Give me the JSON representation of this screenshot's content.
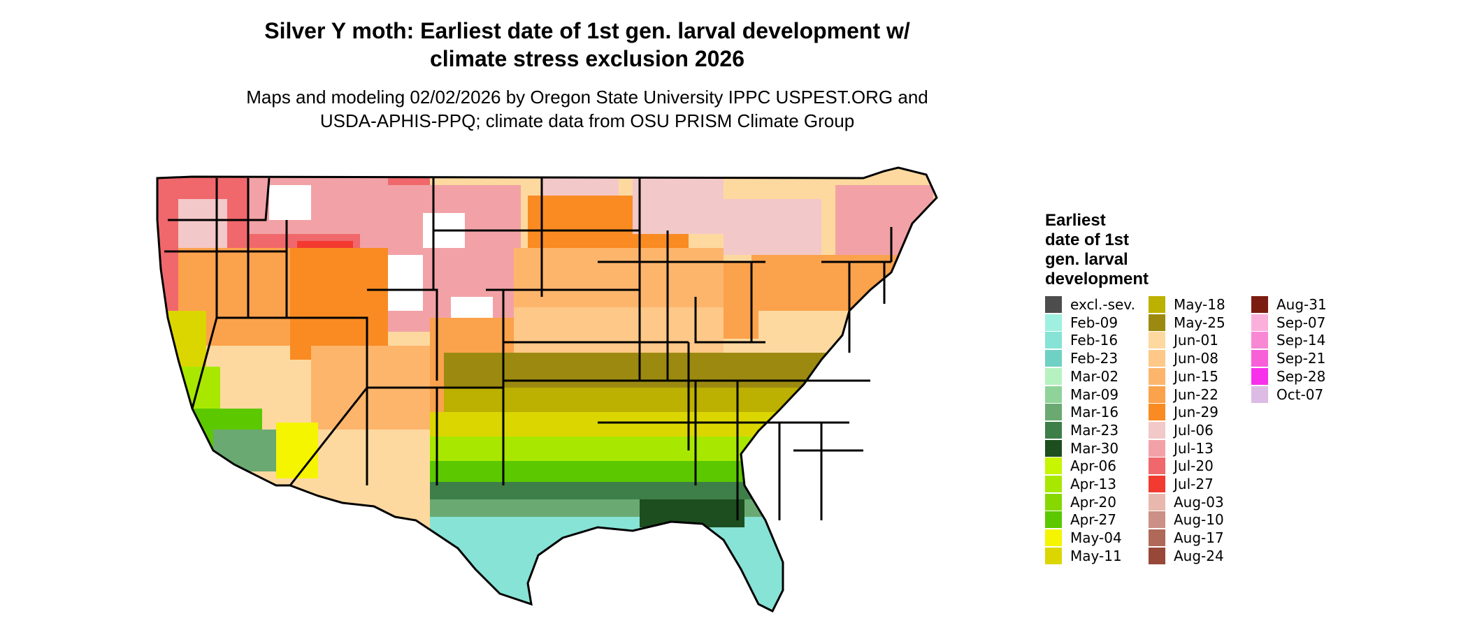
{
  "title_line1": "Silver Y moth: Earliest date of 1st gen. larval development w/",
  "title_line2": "climate stress exclusion 2026",
  "subtitle_line1": "Maps and modeling 02/02/2026 by Oregon State University IPPC USPEST.ORG and",
  "subtitle_line2": "USDA-APHIS-PPQ; climate data from OSU PRISM Climate Group",
  "legend": {
    "title_lines": [
      "Earliest",
      "date of 1st",
      "gen. larval",
      "development"
    ],
    "items": [
      {
        "label": "excl.-sev.",
        "color": "#4d4d4d"
      },
      {
        "label": "Feb-09",
        "color": "#9ff0e0"
      },
      {
        "label": "Feb-16",
        "color": "#86e3d5"
      },
      {
        "label": "Feb-23",
        "color": "#6fd1c4"
      },
      {
        "label": "Mar-02",
        "color": "#b6f2c0"
      },
      {
        "label": "Mar-09",
        "color": "#8fd39a"
      },
      {
        "label": "Mar-16",
        "color": "#6aaa72"
      },
      {
        "label": "Mar-23",
        "color": "#3e7e48"
      },
      {
        "label": "Mar-30",
        "color": "#1d4e1f"
      },
      {
        "label": "Apr-06",
        "color": "#c8f500"
      },
      {
        "label": "Apr-13",
        "color": "#a8e800"
      },
      {
        "label": "Apr-20",
        "color": "#86d800"
      },
      {
        "label": "Apr-27",
        "color": "#5cc800"
      },
      {
        "label": "May-04",
        "color": "#f5f500"
      },
      {
        "label": "May-11",
        "color": "#dcd600"
      },
      {
        "label": "May-18",
        "color": "#bcb000"
      },
      {
        "label": "May-25",
        "color": "#9c8a10"
      },
      {
        "label": "Jun-01",
        "color": "#fdd9a0"
      },
      {
        "label": "Jun-08",
        "color": "#fdc888"
      },
      {
        "label": "Jun-15",
        "color": "#fdb56c"
      },
      {
        "label": "Jun-22",
        "color": "#fba24c"
      },
      {
        "label": "Jun-29",
        "color": "#f98b22"
      },
      {
        "label": "Jul-06",
        "color": "#f3c8c8"
      },
      {
        "label": "Jul-13",
        "color": "#f2a2a6"
      },
      {
        "label": "Jul-20",
        "color": "#f0686c"
      },
      {
        "label": "Jul-27",
        "color": "#f23a30"
      },
      {
        "label": "Aug-03",
        "color": "#e8b8ae"
      },
      {
        "label": "Aug-10",
        "color": "#cc9086"
      },
      {
        "label": "Aug-17",
        "color": "#b06858"
      },
      {
        "label": "Aug-24",
        "color": "#984838"
      },
      {
        "label": "Aug-31",
        "color": "#7c1c10"
      },
      {
        "label": "Sep-07",
        "color": "#fbb0dc"
      },
      {
        "label": "Sep-14",
        "color": "#f888d4"
      },
      {
        "label": "Sep-21",
        "color": "#f860d8"
      },
      {
        "label": "Sep-28",
        "color": "#f830ec"
      },
      {
        "label": "Oct-07",
        "color": "#dcbce4"
      }
    ]
  }
}
